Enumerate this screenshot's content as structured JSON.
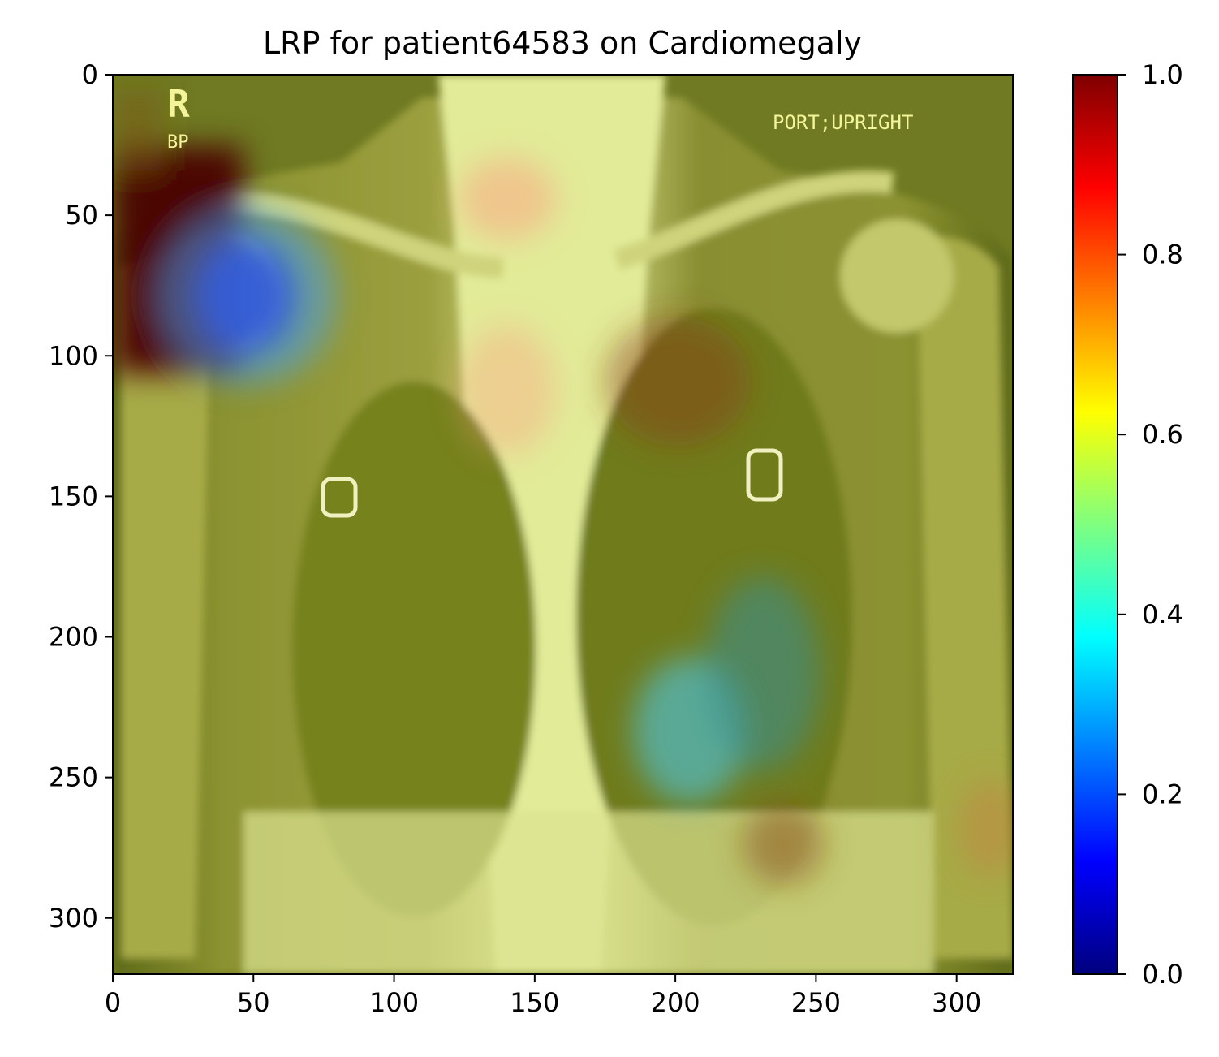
{
  "chart_data": {
    "type": "heatmap",
    "title": "LRP for patient64583 on Cardiomegaly",
    "xlabel": "",
    "ylabel": "",
    "xlim": [
      0,
      320
    ],
    "ylim": [
      320,
      0
    ],
    "x_ticks": [
      0,
      50,
      100,
      150,
      200,
      250,
      300
    ],
    "y_ticks": [
      0,
      50,
      100,
      150,
      200,
      250,
      300
    ],
    "x_tick_labels": [
      "0",
      "50",
      "100",
      "150",
      "200",
      "250",
      "300"
    ],
    "y_tick_labels": [
      "0",
      "50",
      "100",
      "150",
      "200",
      "250",
      "300"
    ],
    "colormap": "jet",
    "colorbar": {
      "range": [
        0.0,
        1.0
      ],
      "ticks": [
        0.0,
        0.2,
        0.4,
        0.6,
        0.8,
        1.0
      ],
      "tick_labels": [
        "0.0",
        "0.2",
        "0.4",
        "0.6",
        "0.8",
        "1.0"
      ],
      "stops": [
        "#00007f",
        "#0000ff",
        "#007fff",
        "#00ffff",
        "#7fff7f",
        "#ffff00",
        "#ff7f00",
        "#ff0000",
        "#7f0000"
      ]
    },
    "background_relevance": 0.62,
    "hotspots": [
      {
        "x": 10,
        "y": 60,
        "value": 0.98
      },
      {
        "x": 48,
        "y": 78,
        "value": 0.12
      },
      {
        "x": 205,
        "y": 240,
        "value": 0.38
      },
      {
        "x": 230,
        "y": 220,
        "value": 0.42
      },
      {
        "x": 210,
        "y": 110,
        "value": 0.8
      },
      {
        "x": 140,
        "y": 45,
        "value": 0.74
      },
      {
        "x": 140,
        "y": 115,
        "value": 0.72
      },
      {
        "x": 240,
        "y": 275,
        "value": 0.78
      }
    ],
    "image_annotations": {
      "marker_large": "R",
      "marker_small": "BP",
      "position_label": "PORT;UPRIGHT"
    }
  }
}
